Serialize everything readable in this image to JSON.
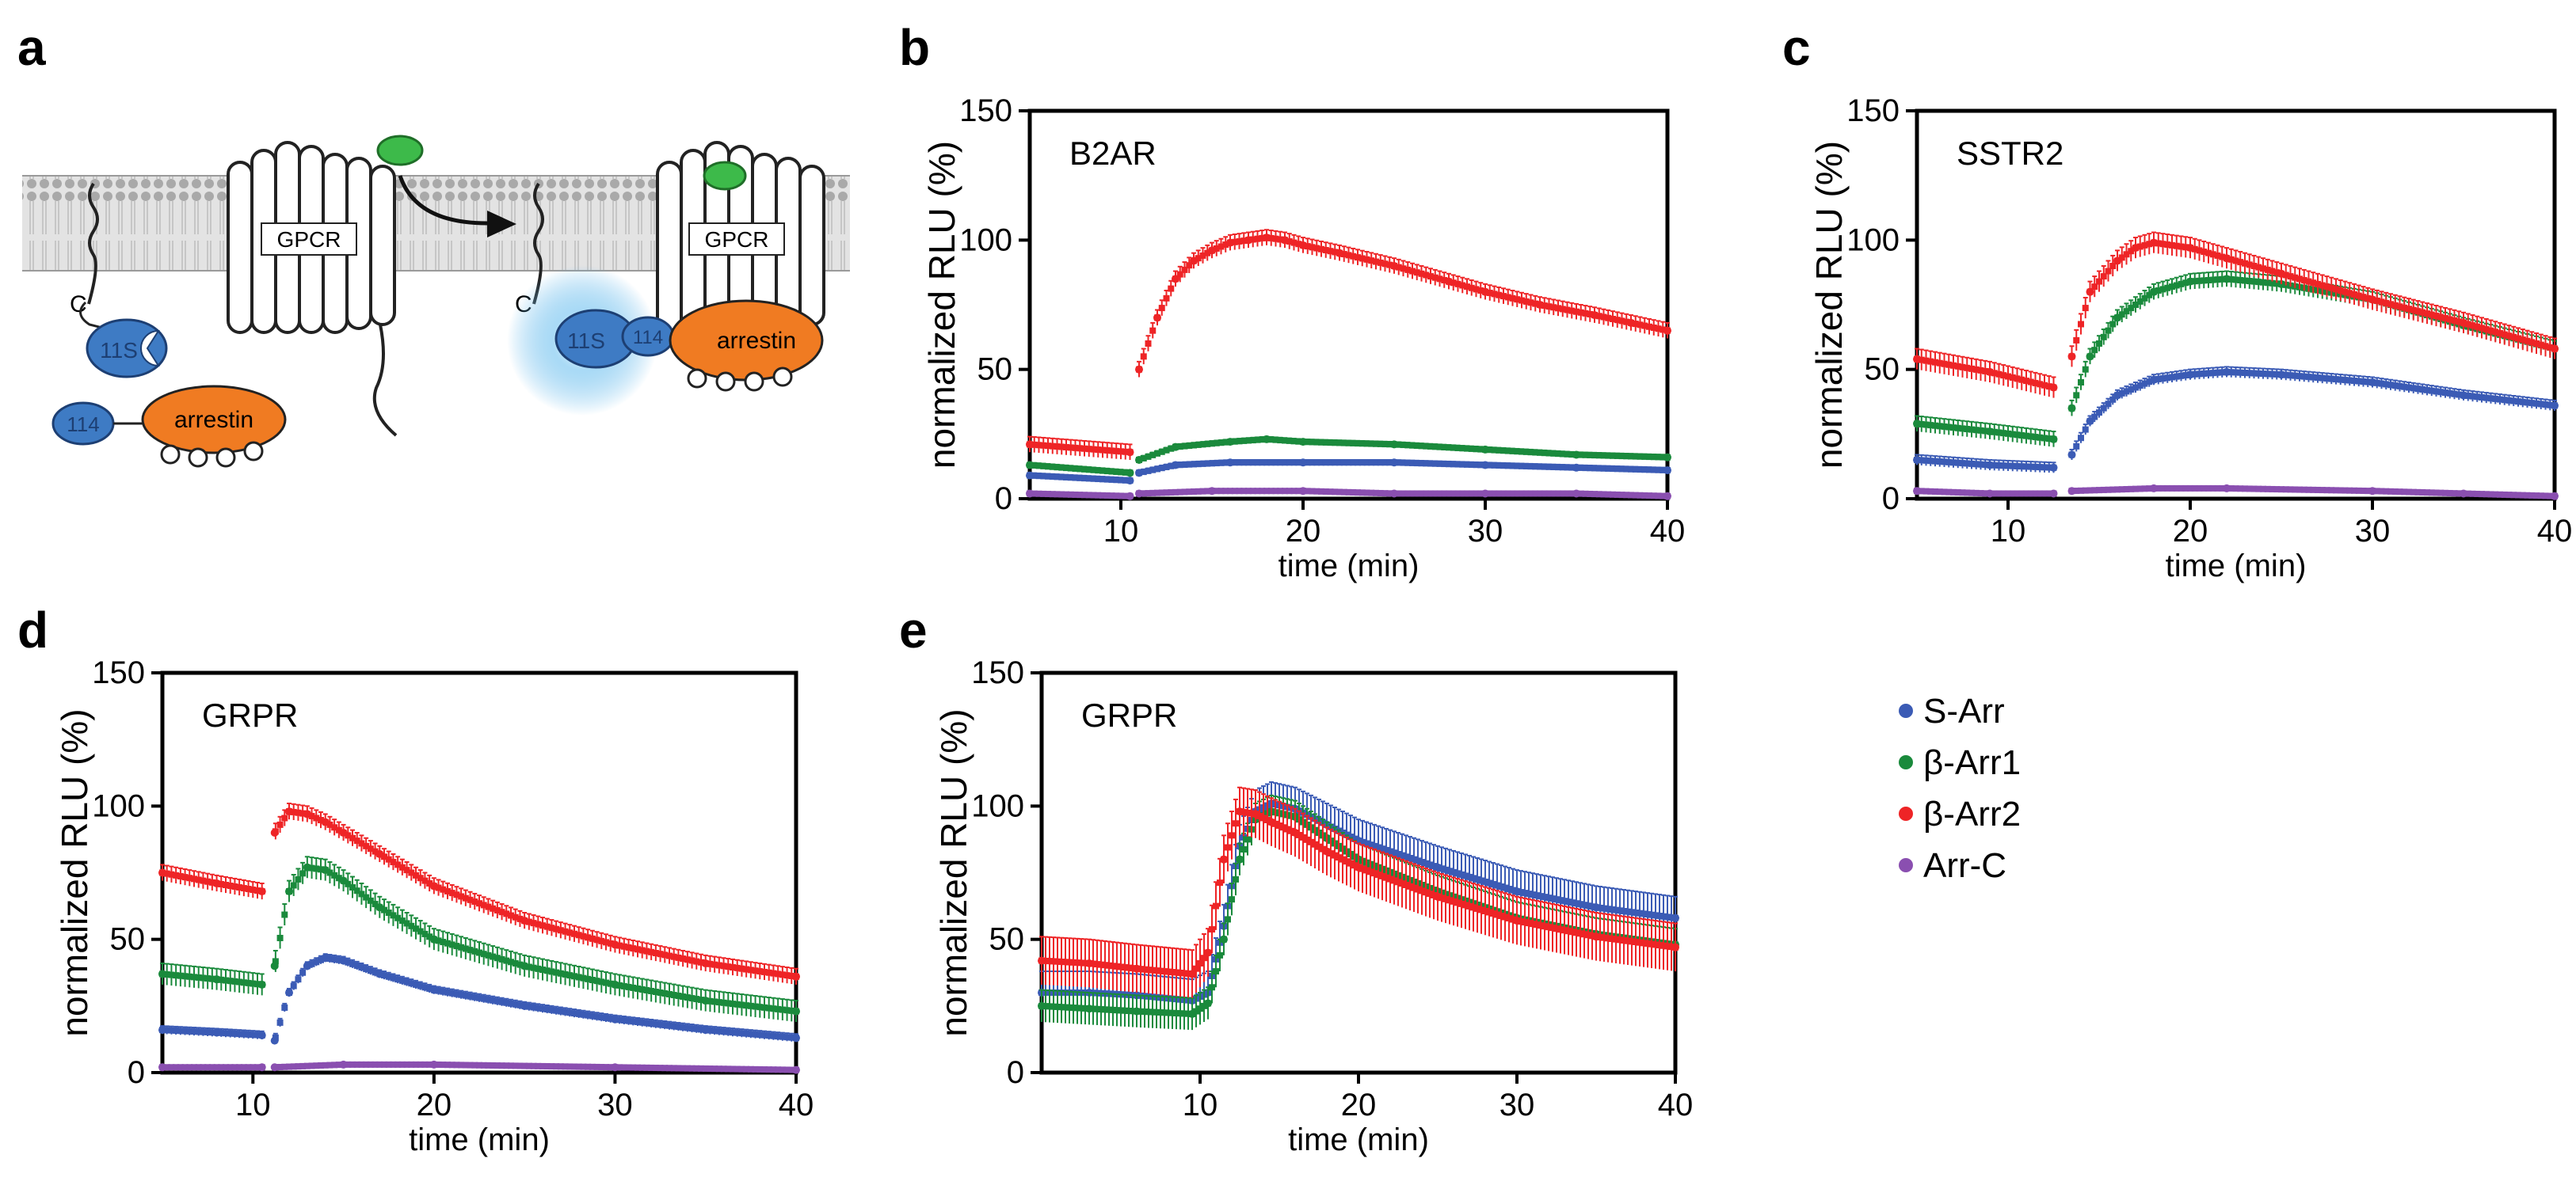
{
  "figure": {
    "panel_labels": [
      "a",
      "b",
      "c",
      "d",
      "e"
    ],
    "legend": [
      {
        "name": "S-Arr",
        "color": "#3b5bb5"
      },
      {
        "name": "β-Arr1",
        "color": "#1a8a3c"
      },
      {
        "name": "β-Arr2",
        "color": "#ee2426"
      },
      {
        "name": "Arr-C",
        "color": "#8a4fb0"
      }
    ],
    "schematic": {
      "gpcr_left": "GPCR",
      "gpcr_right": "GPCR",
      "c_terminus_left": "C",
      "c_terminus_right": "C",
      "lgbit_free": "11S",
      "lgbit_bound": "11S",
      "smbit_free": "114",
      "smbit_bound": "114",
      "arrestin_free": "arrestin",
      "arrestin_bound": "arrestin",
      "colors": {
        "ligand": "#3dba4a",
        "nluc": "#3e7bc4",
        "arrestin": "#f07b22",
        "glow": "#5ab4ea",
        "membrane": "#b5b5b5"
      }
    }
  },
  "chart_data": [
    {
      "panel": "b",
      "type": "scatter",
      "title": "B2AR",
      "xlabel": "time (min)",
      "ylabel": "normalized RLU (%)",
      "xlim": [
        5,
        40
      ],
      "ylim": [
        0,
        150
      ],
      "xticks": [
        10,
        20,
        30,
        40
      ],
      "yticks": [
        0,
        50,
        100,
        150
      ],
      "series": [
        {
          "name": "S-Arr",
          "x": [
            5,
            10.5,
            11,
            13,
            16,
            20,
            25,
            30,
            35,
            40
          ],
          "y": [
            9,
            7,
            10,
            13,
            14,
            14,
            14,
            13,
            12,
            11
          ],
          "err": 1
        },
        {
          "name": "β-Arr1",
          "x": [
            5,
            10.5,
            11,
            13,
            16,
            18,
            20,
            25,
            30,
            35,
            40
          ],
          "y": [
            13,
            10,
            15,
            20,
            22,
            23,
            22,
            21,
            19,
            17,
            16
          ],
          "err": 1
        },
        {
          "name": "β-Arr2",
          "x": [
            5,
            10.5,
            11,
            12,
            13,
            14,
            15,
            16,
            17,
            18,
            19,
            20,
            22,
            25,
            28,
            30,
            33,
            36,
            38,
            40
          ],
          "y": [
            21,
            18,
            50,
            70,
            85,
            92,
            96,
            99,
            100,
            101,
            100,
            98,
            95,
            90,
            84,
            80,
            75,
            71,
            68,
            65
          ],
          "err": 3
        },
        {
          "name": "Arr-C",
          "x": [
            5,
            10.5,
            11,
            15,
            20,
            25,
            30,
            35,
            40
          ],
          "y": [
            2,
            1,
            2,
            3,
            3,
            2,
            2,
            2,
            1
          ],
          "err": 0.5
        }
      ]
    },
    {
      "panel": "c",
      "type": "scatter",
      "title": "SSTR2",
      "xlabel": "time (min)",
      "ylabel": "normalized RLU (%)",
      "xlim": [
        5,
        40
      ],
      "ylim": [
        0,
        150
      ],
      "xticks": [
        10,
        20,
        30,
        40
      ],
      "yticks": [
        0,
        50,
        100,
        150
      ],
      "series": [
        {
          "name": "S-Arr",
          "x": [
            5,
            9,
            12.5,
            13.5,
            14.5,
            16,
            18,
            20,
            22,
            25,
            30,
            35,
            40
          ],
          "y": [
            15,
            13,
            12,
            17,
            30,
            40,
            46,
            48,
            49,
            48,
            45,
            40,
            36
          ],
          "err": 2
        },
        {
          "name": "β-Arr1",
          "x": [
            5,
            9,
            12.5,
            13.5,
            14.5,
            16,
            18,
            20,
            22,
            25,
            30,
            35,
            40
          ],
          "y": [
            29,
            26,
            23,
            35,
            55,
            70,
            80,
            84,
            85,
            83,
            77,
            67,
            58
          ],
          "err": 3
        },
        {
          "name": "β-Arr2",
          "x": [
            5,
            9,
            12.5,
            13.5,
            14.5,
            16,
            17,
            18,
            20,
            22,
            25,
            30,
            35,
            40
          ],
          "y": [
            54,
            49,
            43,
            55,
            80,
            92,
            97,
            99,
            97,
            93,
            87,
            77,
            68,
            58
          ],
          "err": 4
        },
        {
          "name": "Arr-C",
          "x": [
            5,
            9,
            12.5,
            13.5,
            18,
            22,
            30,
            35,
            40
          ],
          "y": [
            3,
            2,
            2,
            3,
            4,
            4,
            3,
            2,
            1
          ],
          "err": 0.5
        }
      ]
    },
    {
      "panel": "d",
      "type": "scatter",
      "title": "GRPR",
      "xlabel": "time (min)",
      "ylabel": "normalized RLU (%)",
      "xlim": [
        5,
        40
      ],
      "ylim": [
        0,
        150
      ],
      "xticks": [
        10,
        20,
        30,
        40
      ],
      "yticks": [
        0,
        50,
        100,
        150
      ],
      "series": [
        {
          "name": "S-Arr",
          "x": [
            5,
            8,
            10.5,
            11.2,
            12,
            13,
            14,
            15,
            17,
            20,
            25,
            30,
            35,
            40
          ],
          "y": [
            16,
            15,
            14,
            12,
            30,
            40,
            43,
            42,
            37,
            31,
            25,
            20,
            16,
            13
          ],
          "err": 1.5
        },
        {
          "name": "β-Arr1",
          "x": [
            5,
            8,
            10.5,
            11.2,
            12,
            13,
            14,
            15,
            17,
            20,
            25,
            30,
            35,
            40
          ],
          "y": [
            37,
            35,
            33,
            40,
            68,
            77,
            76,
            72,
            62,
            50,
            40,
            33,
            27,
            23
          ],
          "err": 4
        },
        {
          "name": "β-Arr2",
          "x": [
            5,
            8,
            10.5,
            11.2,
            12,
            13,
            14,
            15,
            17,
            20,
            25,
            30,
            35,
            40
          ],
          "y": [
            75,
            71,
            68,
            90,
            98,
            97,
            94,
            90,
            82,
            70,
            57,
            48,
            41,
            36
          ],
          "err": 3
        },
        {
          "name": "Arr-C",
          "x": [
            5,
            10.5,
            11.2,
            15,
            20,
            30,
            40
          ],
          "y": [
            2,
            2,
            2,
            3,
            3,
            2,
            1
          ],
          "err": 0.5
        }
      ]
    },
    {
      "panel": "e",
      "type": "scatter",
      "title": "GRPR",
      "xlabel": "time (min)",
      "ylabel": "normalized RLU (%)",
      "xlim": [
        0,
        40
      ],
      "ylim": [
        0,
        150
      ],
      "xticks": [
        10,
        20,
        30,
        40
      ],
      "yticks": [
        0,
        50,
        100,
        150
      ],
      "series": [
        {
          "name": "S-Arr",
          "x": [
            0,
            3,
            6,
            9.5,
            10.5,
            11.5,
            12.5,
            13.5,
            14.5,
            16,
            18,
            20,
            25,
            30,
            35,
            40
          ],
          "y": [
            30,
            30,
            29,
            27,
            30,
            55,
            85,
            98,
            101,
            99,
            93,
            87,
            77,
            68,
            62,
            58
          ],
          "err": 8
        },
        {
          "name": "β-Arr1",
          "x": [
            0,
            3,
            6,
            9.5,
            10.5,
            11.5,
            12.5,
            13.5,
            14.5,
            16,
            18,
            20,
            25,
            30,
            35,
            40
          ],
          "y": [
            25,
            24,
            23,
            22,
            26,
            50,
            80,
            95,
            98,
            96,
            88,
            80,
            68,
            58,
            52,
            48
          ],
          "err": 6
        },
        {
          "name": "β-Arr2",
          "x": [
            0,
            3,
            6,
            9.5,
            10.5,
            11.5,
            12.5,
            13.5,
            14.5,
            16,
            18,
            20,
            25,
            30,
            35,
            40
          ],
          "y": [
            42,
            41,
            39,
            37,
            45,
            80,
            98,
            97,
            94,
            90,
            83,
            77,
            66,
            57,
            51,
            47
          ],
          "err": 9
        },
        {
          "name": "Arr-C",
          "x": [],
          "y": [],
          "err": 0
        }
      ]
    }
  ]
}
